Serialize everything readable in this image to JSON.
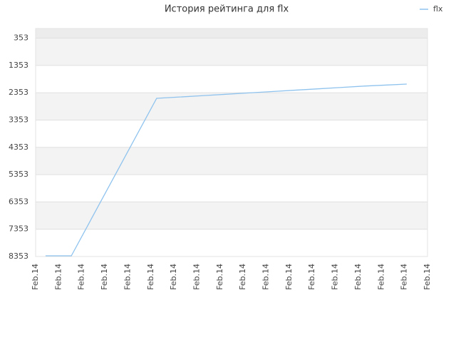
{
  "chart_data": {
    "type": "line",
    "title": "История рейтинга для flx",
    "xlim": [
      0,
      17
    ],
    "xticks": [
      {
        "value": 0,
        "label": "Feb.14"
      },
      {
        "value": 1,
        "label": "Feb.14"
      },
      {
        "value": 2,
        "label": "Feb.14"
      },
      {
        "value": 3,
        "label": "Feb.14"
      },
      {
        "value": 4,
        "label": "Feb.14"
      },
      {
        "value": 5,
        "label": "Feb.14"
      },
      {
        "value": 6,
        "label": "Feb.14"
      },
      {
        "value": 7,
        "label": "Feb.14"
      },
      {
        "value": 8,
        "label": "Feb.14"
      },
      {
        "value": 9,
        "label": "Feb.14"
      },
      {
        "value": 10,
        "label": "Feb.14"
      },
      {
        "value": 11,
        "label": "Feb.14"
      },
      {
        "value": 12,
        "label": "Feb.14"
      },
      {
        "value": 13,
        "label": "Feb.14"
      },
      {
        "value": 14,
        "label": "Feb.14"
      },
      {
        "value": 15,
        "label": "Feb.14"
      },
      {
        "value": 16,
        "label": "Feb.14"
      },
      {
        "value": 17,
        "label": "Feb.14"
      }
    ],
    "ylim": [
      8353,
      0
    ],
    "yticks": [
      353,
      1353,
      2353,
      3353,
      4353,
      5353,
      6353,
      7353,
      8353
    ],
    "grid": true,
    "legend": "top-right",
    "series": [
      {
        "name": "flx",
        "color": "#8fc3ee",
        "x": [
          0.43,
          1.55,
          5.25,
          6.25,
          7.25,
          8.25,
          9.25,
          10.25,
          11.25,
          12.25,
          13.25,
          14.25,
          15.25,
          16.1
        ],
        "values": [
          8327,
          8327,
          2558,
          2510,
          2460,
          2410,
          2360,
          2310,
          2260,
          2210,
          2160,
          2110,
          2070,
          2036
        ]
      }
    ]
  }
}
